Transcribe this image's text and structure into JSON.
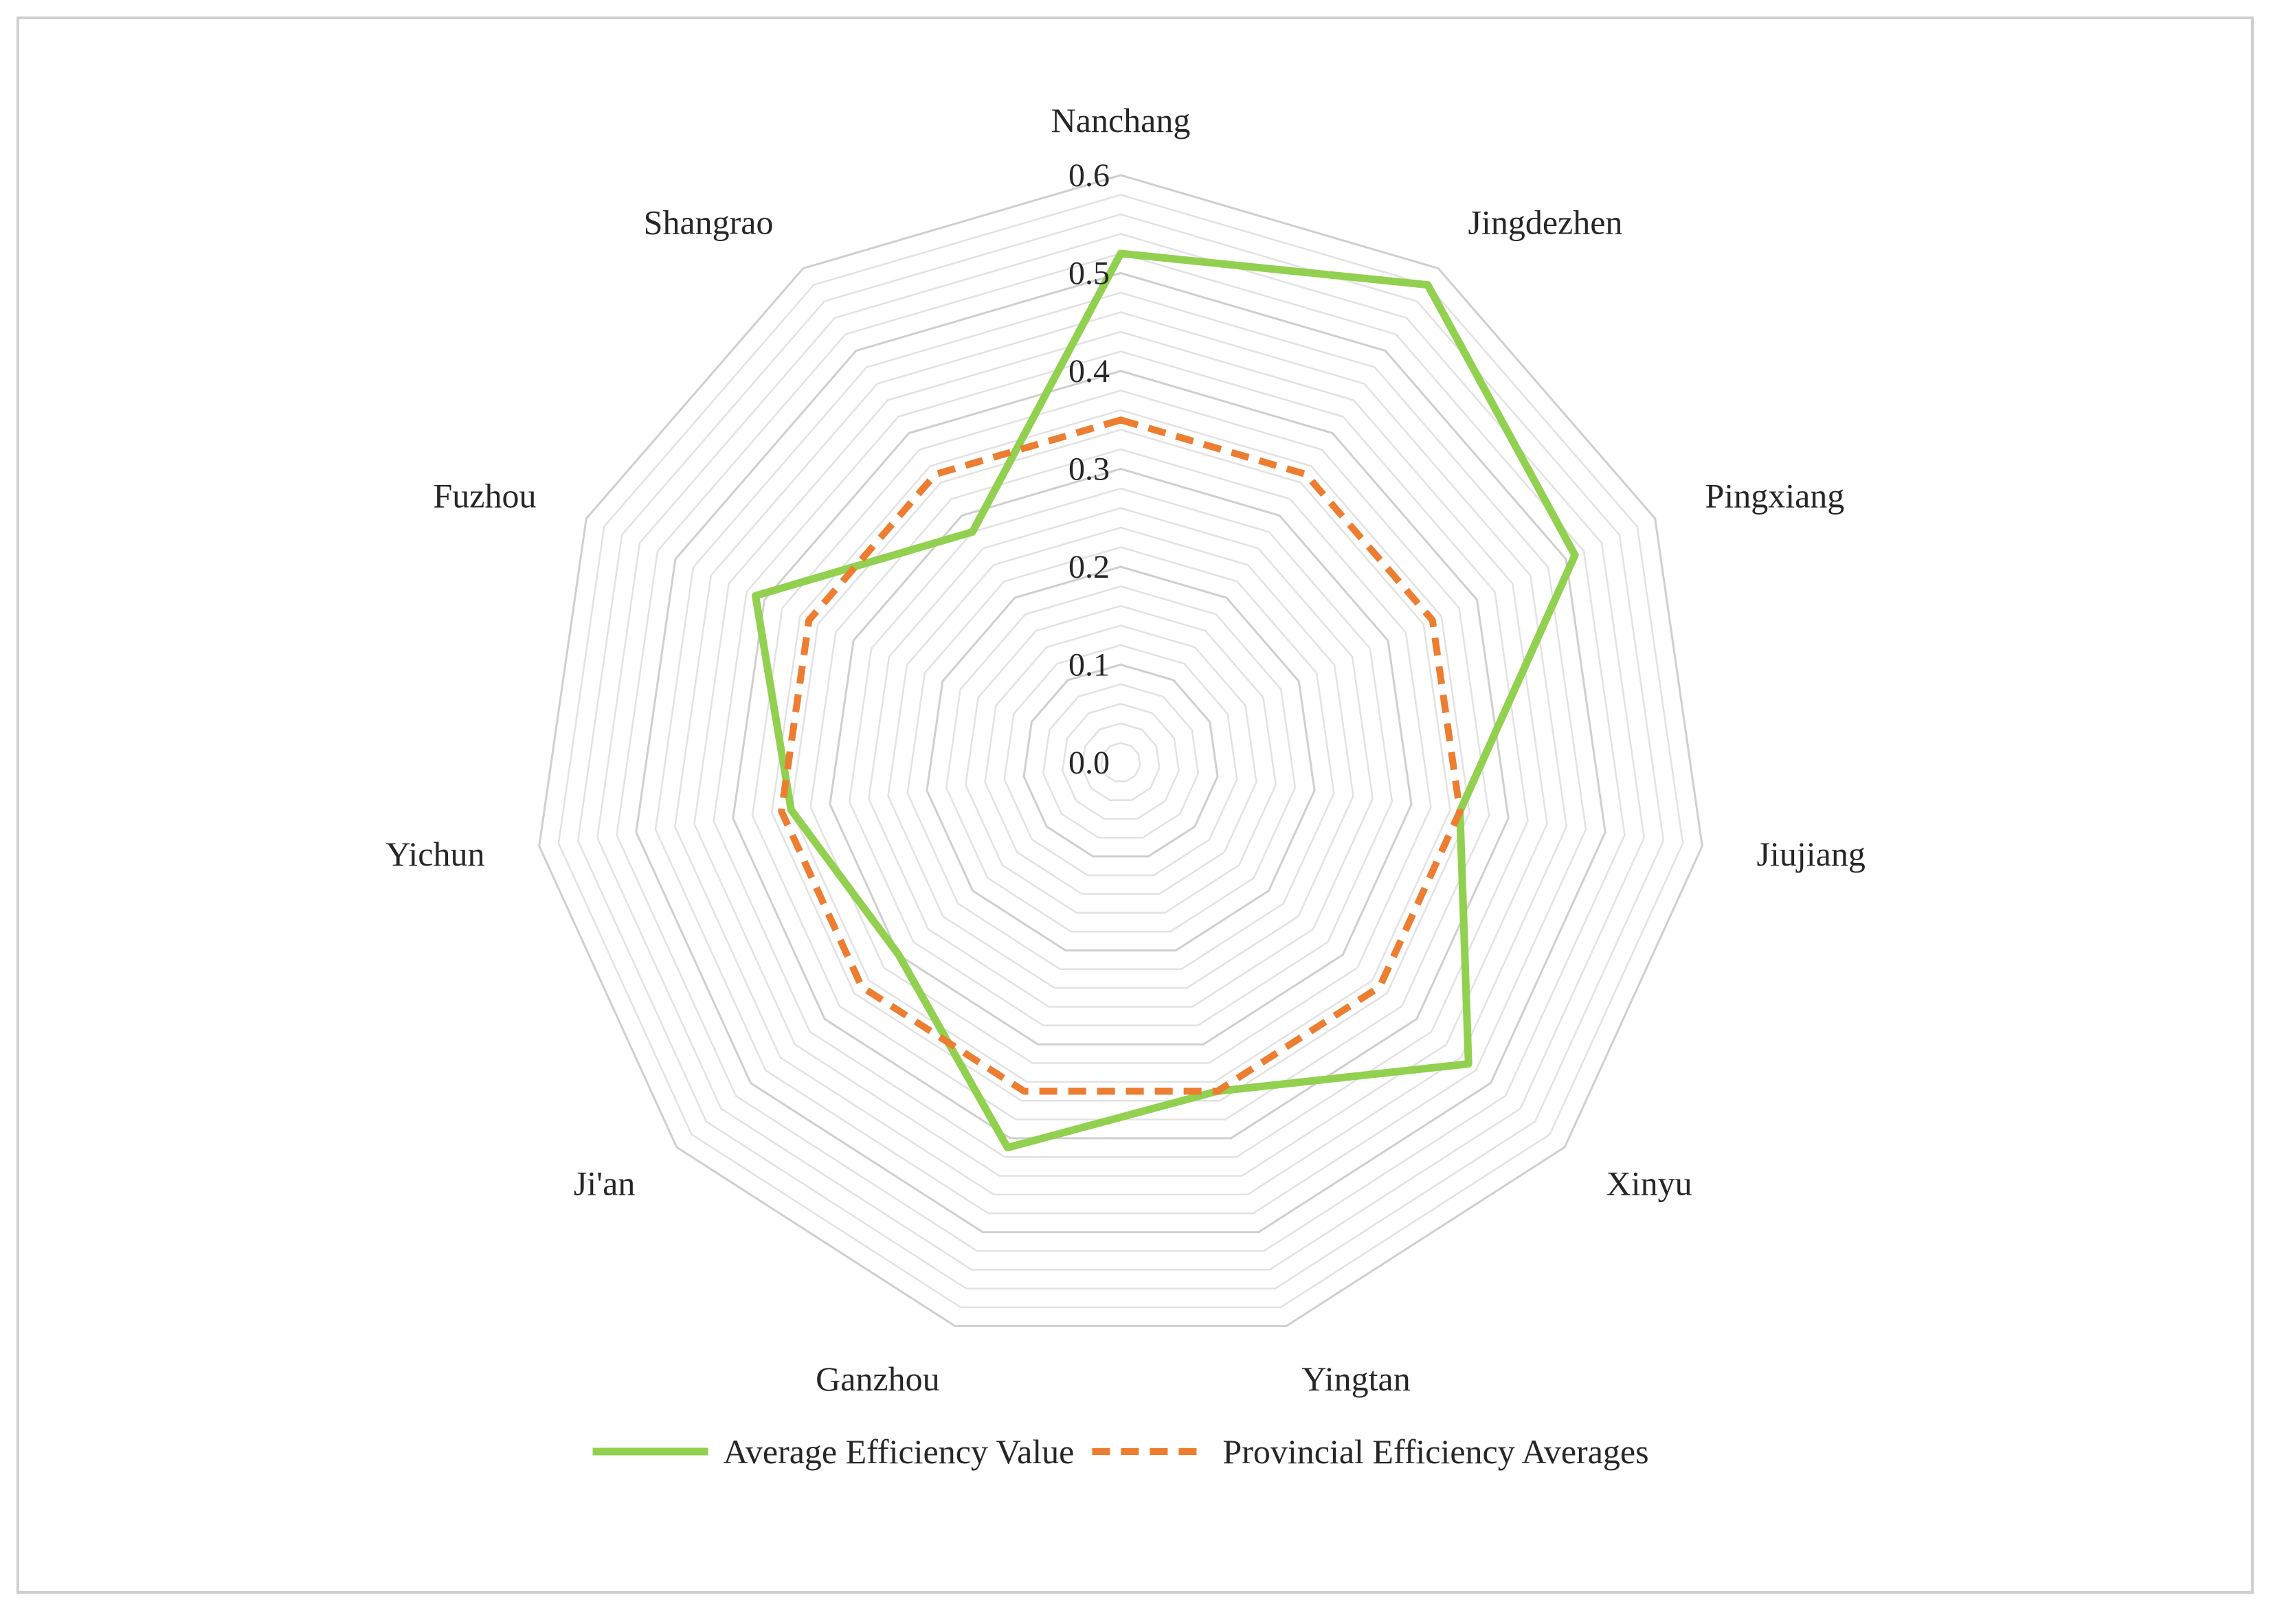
{
  "chart_data": {
    "type": "radar",
    "categories": [
      "Nanchang",
      "Jingdezhen",
      "Pingxiang",
      "Jiujiang",
      "Xinyu",
      "Yingtan",
      "Ganzhou",
      "Ji'an",
      "Yichun",
      "Fuzhou",
      "Shangrao"
    ],
    "series": [
      {
        "name": "Average Efficiency Value",
        "values": [
          0.52,
          0.58,
          0.51,
          0.35,
          0.47,
          0.35,
          0.41,
          0.3,
          0.34,
          0.41,
          0.28
        ],
        "color": "#92d050",
        "line_style": "solid"
      },
      {
        "name": "Provincial Efficiency Averages",
        "values": [
          0.35,
          0.35,
          0.35,
          0.35,
          0.35,
          0.35,
          0.35,
          0.35,
          0.35,
          0.35,
          0.35
        ],
        "color": "#ed7d31",
        "line_style": "dashed"
      }
    ],
    "r_ticks": [
      "0.0",
      "0.1",
      "0.2",
      "0.3",
      "0.4",
      "0.5",
      "0.6"
    ],
    "r_range": [
      0,
      0.6
    ],
    "grid_color": "#d9d9d9",
    "legend_position": "bottom"
  }
}
